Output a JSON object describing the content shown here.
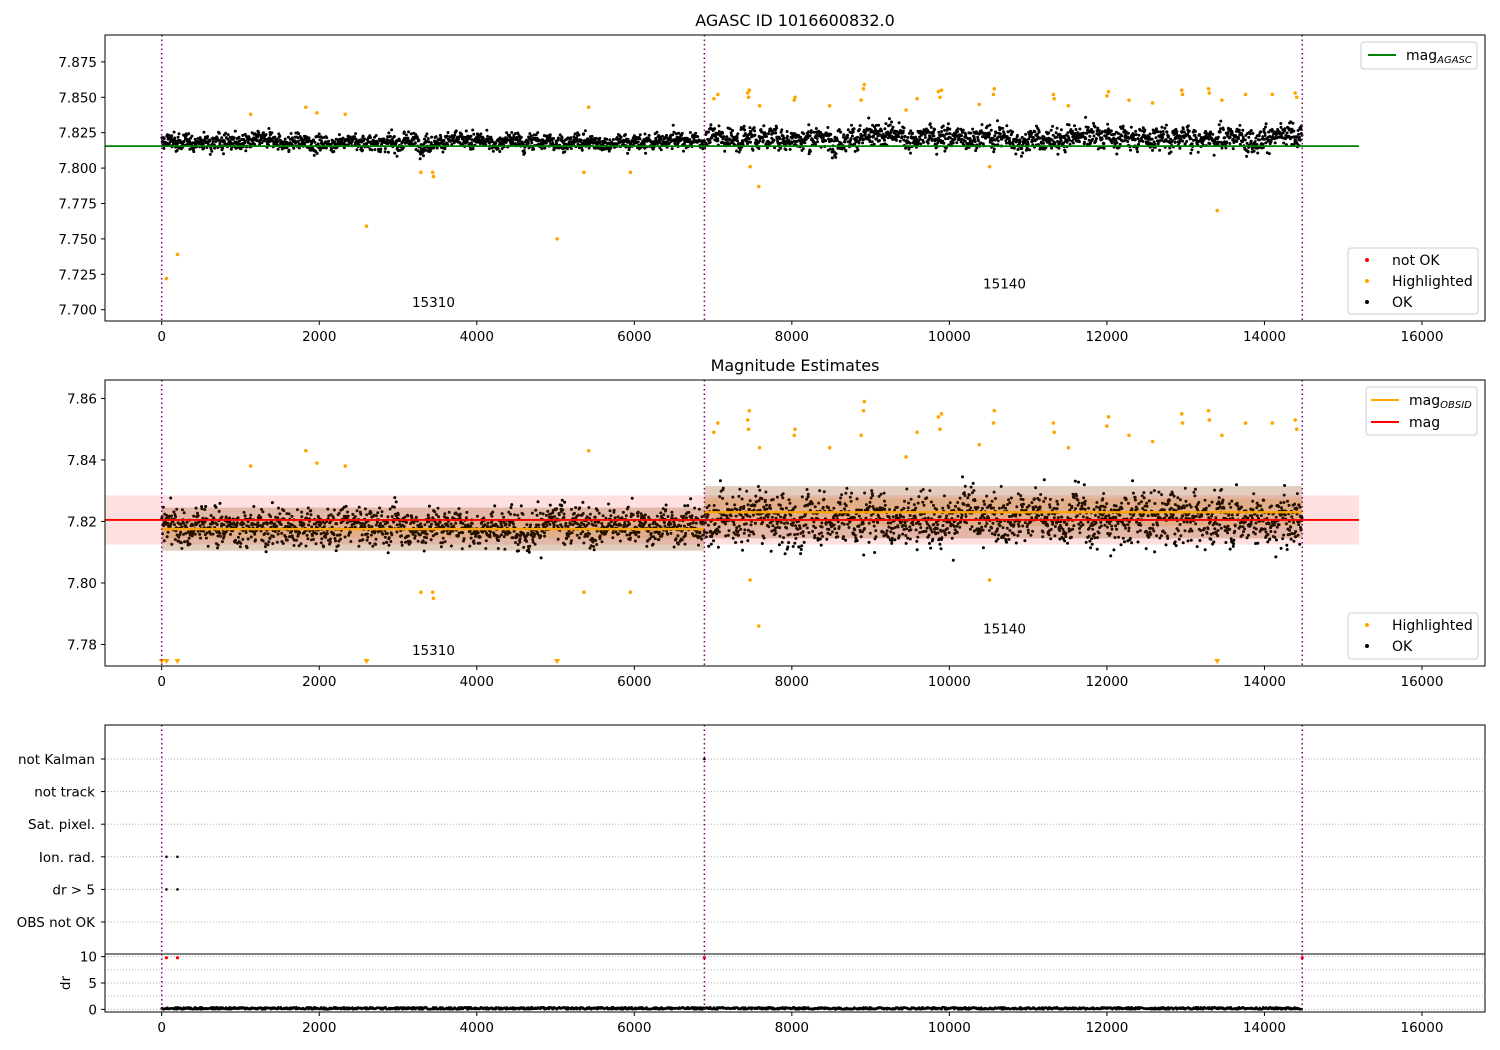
{
  "chart_data": [
    {
      "type": "scatter",
      "title": "AGASC ID 1016600832.0",
      "xlim": [
        -720,
        16800
      ],
      "ylim": [
        7.692,
        7.894
      ],
      "xticks": [
        0,
        2000,
        4000,
        6000,
        8000,
        10000,
        12000,
        14000,
        16000
      ],
      "yticks": [
        7.7,
        7.725,
        7.75,
        7.775,
        7.8,
        7.825,
        7.85,
        7.875
      ],
      "ytick_labels": [
        "7.700",
        "7.725",
        "7.750",
        "7.775",
        "7.800",
        "7.825",
        "7.850",
        "7.875"
      ],
      "vlines": [
        0,
        6890,
        14480
      ],
      "segments": [
        {
          "x_start": 0,
          "x_end": 6890,
          "base": 7.8185,
          "spread": 0.0055,
          "slope": 0
        },
        {
          "x_start": 6890,
          "x_end": 14480,
          "base": 7.8215,
          "spread": 0.0075,
          "slope": 0
        }
      ],
      "hlines": [
        {
          "name": "mag",
          "subscript": "AGASC",
          "y": 7.8155,
          "x_end": 15200,
          "color": "#008000"
        }
      ],
      "highlighted": [
        [
          60,
          7.722
        ],
        [
          200,
          7.739
        ],
        [
          1130,
          7.838
        ],
        [
          1830,
          7.843
        ],
        [
          1970,
          7.839
        ],
        [
          2330,
          7.838
        ],
        [
          2600,
          7.759
        ],
        [
          3290,
          7.797
        ],
        [
          3440,
          7.797
        ],
        [
          3450,
          7.794
        ],
        [
          5020,
          7.75
        ],
        [
          5360,
          7.797
        ],
        [
          5420,
          7.843
        ],
        [
          5950,
          7.797
        ],
        [
          7010,
          7.849
        ],
        [
          7060,
          7.852
        ],
        [
          7440,
          7.853
        ],
        [
          7450,
          7.85
        ],
        [
          7460,
          7.855
        ],
        [
          7470,
          7.801
        ],
        [
          7580,
          7.787
        ],
        [
          7590,
          7.844
        ],
        [
          8030,
          7.848
        ],
        [
          8040,
          7.85
        ],
        [
          8480,
          7.844
        ],
        [
          8880,
          7.848
        ],
        [
          8910,
          7.856
        ],
        [
          8920,
          7.859
        ],
        [
          9450,
          7.841
        ],
        [
          9590,
          7.849
        ],
        [
          9860,
          7.854
        ],
        [
          9880,
          7.85
        ],
        [
          9900,
          7.855
        ],
        [
          10380,
          7.845
        ],
        [
          10510,
          7.801
        ],
        [
          10560,
          7.852
        ],
        [
          10570,
          7.856
        ],
        [
          11320,
          7.852
        ],
        [
          11330,
          7.849
        ],
        [
          11510,
          7.844
        ],
        [
          12000,
          7.851
        ],
        [
          12020,
          7.854
        ],
        [
          12280,
          7.848
        ],
        [
          12580,
          7.846
        ],
        [
          12950,
          7.855
        ],
        [
          12960,
          7.852
        ],
        [
          13290,
          7.856
        ],
        [
          13300,
          7.853
        ],
        [
          13400,
          7.77
        ],
        [
          13460,
          7.848
        ],
        [
          13760,
          7.852
        ],
        [
          14100,
          7.852
        ],
        [
          14390,
          7.853
        ],
        [
          14410,
          7.85
        ]
      ],
      "annotations": [
        {
          "text": "15310",
          "x": 3450,
          "y": 7.702
        },
        {
          "text": "15140",
          "x": 10700,
          "y": 7.715
        }
      ],
      "legend_lines": [
        {
          "label": "mag",
          "subscript": "AGASC",
          "color": "#008000"
        }
      ],
      "legend_markers": [
        {
          "label": "not OK",
          "color": "#ff0000"
        },
        {
          "label": "Highlighted",
          "color": "#ffa500"
        },
        {
          "label": "OK",
          "color": "#000000"
        }
      ]
    },
    {
      "type": "scatter",
      "title": "Magnitude Estimates",
      "xlim": [
        -720,
        16800
      ],
      "ylim": [
        7.773,
        7.866
      ],
      "xticks": [
        0,
        2000,
        4000,
        6000,
        8000,
        10000,
        12000,
        14000,
        16000
      ],
      "yticks": [
        7.78,
        7.8,
        7.82,
        7.84,
        7.86
      ],
      "ytick_labels": [
        "7.78",
        "7.80",
        "7.82",
        "7.84",
        "7.86"
      ],
      "vlines": [
        0,
        6890,
        14480
      ],
      "segments": [
        {
          "x_start": 0,
          "x_end": 6890,
          "base": 7.8185,
          "spread": 0.0055,
          "slope": 0
        },
        {
          "x_start": 6890,
          "x_end": 14480,
          "base": 7.8215,
          "spread": 0.0075,
          "slope": 0
        }
      ],
      "band": {
        "x_start": -720,
        "x_end": 15200,
        "y_low": 7.8125,
        "y_high": 7.8285,
        "color": "#ff0000",
        "opacity": 0.12
      },
      "obsid_lines": [
        {
          "x_start": 0,
          "x_end": 6890,
          "y": 7.8175,
          "y_low": 7.8145,
          "y_high": 7.8205
        },
        {
          "x_start": 6890,
          "x_end": 14480,
          "y": 7.823,
          "y_low": 7.8185,
          "y_high": 7.8275
        }
      ],
      "hlines": [
        {
          "name": "mag",
          "y": 7.8205,
          "x_end": 15200,
          "color": "#ff0000"
        }
      ],
      "highlighted": [
        [
          1130,
          7.838
        ],
        [
          1830,
          7.843
        ],
        [
          1970,
          7.839
        ],
        [
          2330,
          7.838
        ],
        [
          3290,
          7.797
        ],
        [
          3440,
          7.797
        ],
        [
          3450,
          7.795
        ],
        [
          5360,
          7.797
        ],
        [
          5420,
          7.843
        ],
        [
          5950,
          7.797
        ],
        [
          7010,
          7.849
        ],
        [
          7060,
          7.852
        ],
        [
          7440,
          7.853
        ],
        [
          7450,
          7.85
        ],
        [
          7460,
          7.856
        ],
        [
          7470,
          7.801
        ],
        [
          7580,
          7.786
        ],
        [
          7590,
          7.844
        ],
        [
          8030,
          7.848
        ],
        [
          8040,
          7.85
        ],
        [
          8480,
          7.844
        ],
        [
          8880,
          7.848
        ],
        [
          8910,
          7.856
        ],
        [
          8920,
          7.859
        ],
        [
          9450,
          7.841
        ],
        [
          9590,
          7.849
        ],
        [
          9860,
          7.854
        ],
        [
          9880,
          7.85
        ],
        [
          9900,
          7.855
        ],
        [
          10380,
          7.845
        ],
        [
          10510,
          7.801
        ],
        [
          10560,
          7.852
        ],
        [
          10570,
          7.856
        ],
        [
          11320,
          7.852
        ],
        [
          11330,
          7.849
        ],
        [
          11510,
          7.844
        ],
        [
          12000,
          7.851
        ],
        [
          12020,
          7.854
        ],
        [
          12280,
          7.848
        ],
        [
          12580,
          7.846
        ],
        [
          12950,
          7.855
        ],
        [
          12960,
          7.852
        ],
        [
          13290,
          7.856
        ],
        [
          13300,
          7.853
        ],
        [
          13460,
          7.848
        ],
        [
          13760,
          7.852
        ],
        [
          14100,
          7.852
        ],
        [
          14390,
          7.853
        ],
        [
          14410,
          7.85
        ]
      ],
      "offscale_low": [
        0,
        60,
        200,
        2600,
        5020,
        13400
      ],
      "annotations": [
        {
          "text": "15310",
          "x": 3450,
          "y": 7.7765
        },
        {
          "text": "15140",
          "x": 10700,
          "y": 7.7835
        }
      ],
      "legend_lines": [
        {
          "label": "mag",
          "subscript": "OBSID",
          "color": "#ffa500"
        },
        {
          "label": "mag",
          "subscript": "",
          "color": "#ff0000"
        }
      ],
      "legend_markers": [
        {
          "label": "Highlighted",
          "color": "#ffa500"
        },
        {
          "label": "OK",
          "color": "#000000"
        }
      ]
    },
    {
      "type": "scatter",
      "xlim": [
        -720,
        16800
      ],
      "vlines": [
        0,
        6890,
        14480
      ],
      "categories": [
        "not Kalman",
        "not track",
        "Sat. pixel.",
        "Ion. rad.",
        "dr > 5",
        "OBS not OK"
      ],
      "flag_points": [
        {
          "category": "Ion. rad.",
          "x": [
            60,
            200
          ]
        },
        {
          "category": "dr > 5",
          "x": [
            60,
            200
          ]
        },
        {
          "category": "not Kalman",
          "x": [
            6890
          ]
        }
      ]
    },
    {
      "type": "scatter",
      "ylabel": "dr",
      "xlim": [
        -720,
        16800
      ],
      "ylim": [
        -0.5,
        10.5
      ],
      "yticks": [
        0,
        5,
        10
      ],
      "ytick_labels": [
        "0",
        "5",
        "10"
      ],
      "xticks": [
        0,
        2000,
        4000,
        6000,
        8000,
        10000,
        12000,
        14000,
        16000
      ],
      "vlines": [
        0,
        6890,
        14480
      ],
      "red_points": [
        [
          60,
          9.8
        ],
        [
          200,
          9.8
        ],
        [
          6890,
          9.8
        ],
        [
          14480,
          9.8
        ]
      ],
      "baseline": {
        "x_start": 0,
        "x_end": 14480,
        "base": 0.2,
        "spread": 0.2
      }
    }
  ]
}
